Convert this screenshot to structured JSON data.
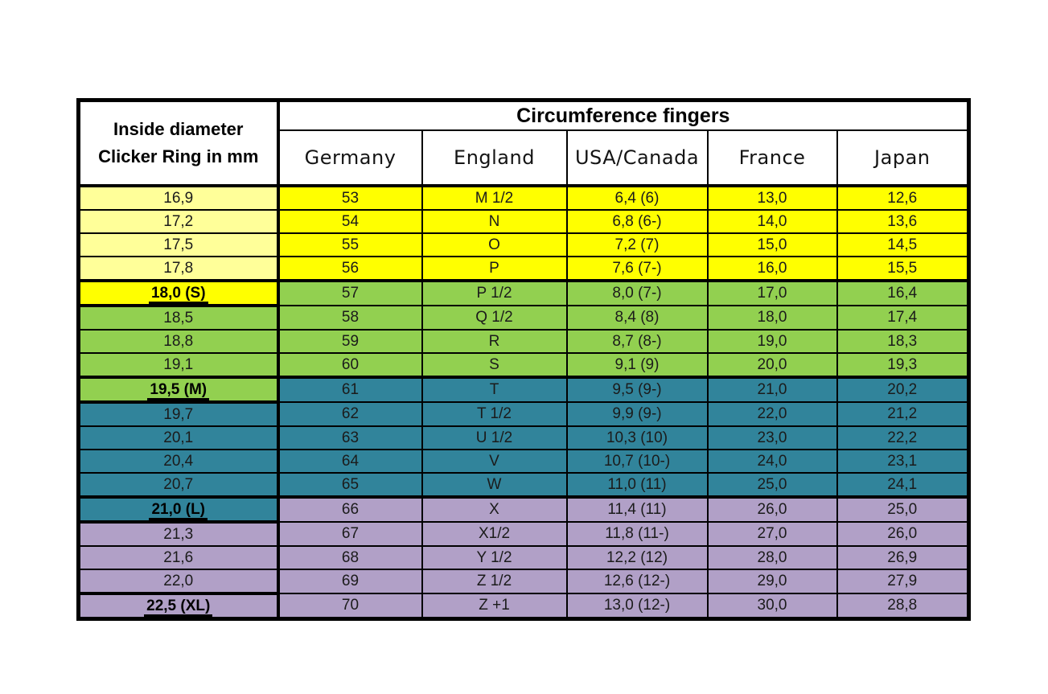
{
  "chart_data": {
    "type": "table",
    "title": "Circumference fingers",
    "corner_header": {
      "line1": "Inside diameter",
      "line2": "Clicker Ring in mm"
    },
    "columns": [
      "Germany",
      "England",
      "USA/Canada",
      "France",
      "Japan"
    ],
    "rows": [
      {
        "diameter": "16,9",
        "germany": "53",
        "england": "M 1/2",
        "usa": "6,4 (6)",
        "france": "13,0",
        "japan": "12,6",
        "band": "yellow",
        "diam_band": "paleyellow",
        "special": false
      },
      {
        "diameter": "17,2",
        "germany": "54",
        "england": "N",
        "usa": "6,8 (6-)",
        "france": "14,0",
        "japan": "13,6",
        "band": "yellow",
        "diam_band": "paleyellow",
        "special": false
      },
      {
        "diameter": "17,5",
        "germany": "55",
        "england": "O",
        "usa": "7,2 (7)",
        "france": "15,0",
        "japan": "14,5",
        "band": "yellow",
        "diam_band": "paleyellow",
        "special": false
      },
      {
        "diameter": "17,8",
        "germany": "56",
        "england": "P",
        "usa": "7,6 (7-)",
        "france": "16,0",
        "japan": "15,5",
        "band": "yellow",
        "diam_band": "paleyellow",
        "special": false
      },
      {
        "diameter": "18,0 (S)",
        "germany": "57",
        "england": "P 1/2",
        "usa": "8,0 (7-)",
        "france": "17,0",
        "japan": "16,4",
        "band": "green",
        "diam_band": "yellow",
        "special": true
      },
      {
        "diameter": "18,5",
        "germany": "58",
        "england": "Q 1/2",
        "usa": "8,4 (8)",
        "france": "18,0",
        "japan": "17,4",
        "band": "green",
        "diam_band": "green",
        "special": false
      },
      {
        "diameter": "18,8",
        "germany": "59",
        "england": "R",
        "usa": "8,7 (8-)",
        "france": "19,0",
        "japan": "18,3",
        "band": "green",
        "diam_band": "green",
        "special": false
      },
      {
        "diameter": "19,1",
        "germany": "60",
        "england": "S",
        "usa": "9,1 (9)",
        "france": "20,0",
        "japan": "19,3",
        "band": "green",
        "diam_band": "green",
        "special": false
      },
      {
        "diameter": "19,5 (M)",
        "germany": "61",
        "england": "T",
        "usa": "9,5 (9-)",
        "france": "21,0",
        "japan": "20,2",
        "band": "teal",
        "diam_band": "green",
        "special": true
      },
      {
        "diameter": "19,7",
        "germany": "62",
        "england": "T 1/2",
        "usa": "9,9 (9-)",
        "france": "22,0",
        "japan": "21,2",
        "band": "teal",
        "diam_band": "teal",
        "special": false
      },
      {
        "diameter": "20,1",
        "germany": "63",
        "england": "U 1/2",
        "usa": "10,3 (10)",
        "france": "23,0",
        "japan": "22,2",
        "band": "teal",
        "diam_band": "teal",
        "special": false
      },
      {
        "diameter": "20,4",
        "germany": "64",
        "england": "V",
        "usa": "10,7 (10-)",
        "france": "24,0",
        "japan": "23,1",
        "band": "teal",
        "diam_band": "teal",
        "special": false
      },
      {
        "diameter": "20,7",
        "germany": "65",
        "england": "W",
        "usa": "11,0 (11)",
        "france": "25,0",
        "japan": "24,1",
        "band": "teal",
        "diam_band": "teal",
        "special": false
      },
      {
        "diameter": "21,0 (L)",
        "germany": "66",
        "england": "X",
        "usa": "11,4 (11)",
        "france": "26,0",
        "japan": "25,0",
        "band": "purple",
        "diam_band": "teal",
        "special": true
      },
      {
        "diameter": "21,3",
        "germany": "67",
        "england": "X1/2",
        "usa": "11,8 (11-)",
        "france": "27,0",
        "japan": "26,0",
        "band": "purple",
        "diam_band": "purple",
        "special": false
      },
      {
        "diameter": "21,6",
        "germany": "68",
        "england": "Y 1/2",
        "usa": "12,2 (12)",
        "france": "28,0",
        "japan": "26,9",
        "band": "purple",
        "diam_band": "purple",
        "special": false
      },
      {
        "diameter": "22,0",
        "germany": "69",
        "england": "Z 1/2",
        "usa": "12,6 (12-)",
        "france": "29,0",
        "japan": "27,9",
        "band": "purple",
        "diam_band": "purple",
        "special": false
      },
      {
        "diameter": "22,5 (XL)",
        "germany": "70",
        "england": "Z +1",
        "usa": "13,0 (12-)",
        "france": "30,0",
        "japan": "28,8",
        "band": "purple",
        "diam_band": "purple",
        "special": true
      }
    ]
  },
  "colors": {
    "paleyellow": "#FFFF99",
    "yellow": "#FFFF00",
    "green": "#92D050",
    "teal": "#31849B",
    "purple": "#B1A0C7",
    "border": "#000000"
  }
}
